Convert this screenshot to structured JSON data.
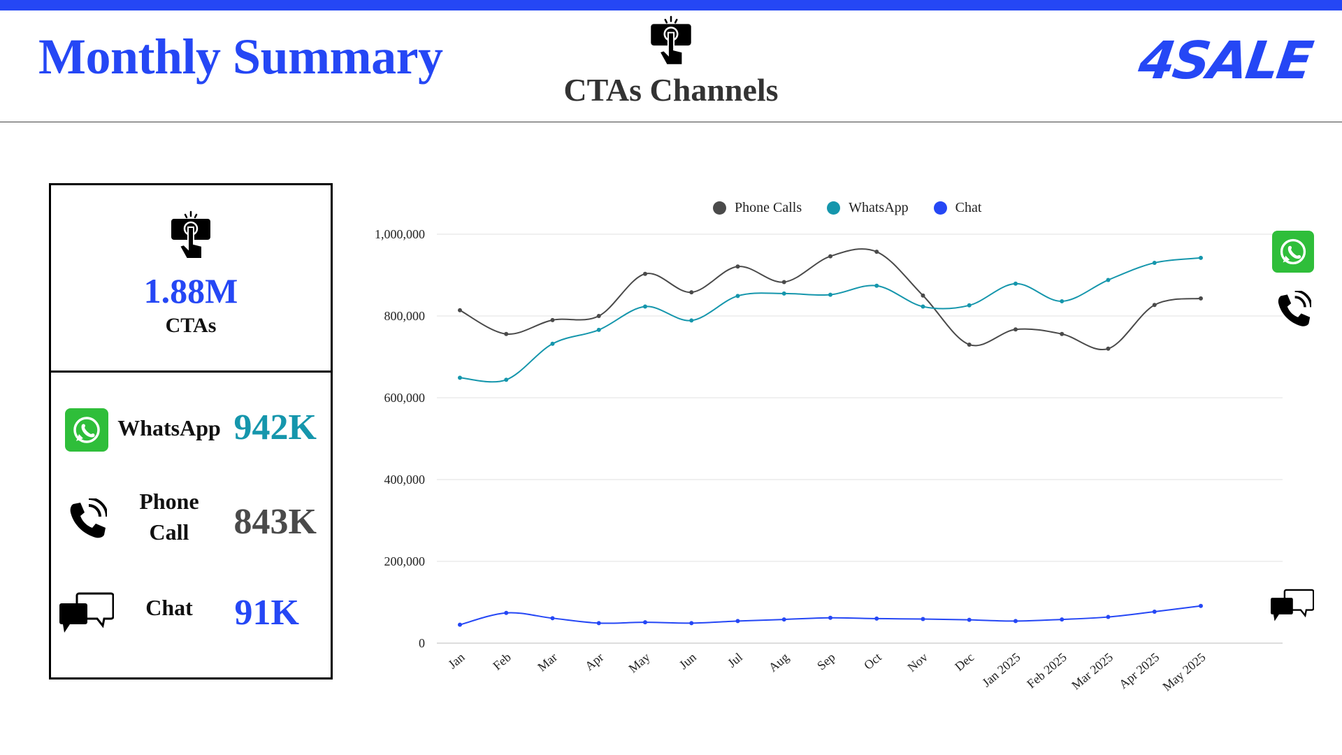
{
  "header": {
    "title": "Monthly Summary",
    "center_title": "CTAs Channels",
    "brand": "4SALE",
    "accent_color": "#2547f5"
  },
  "summary": {
    "total_value": "1.88M",
    "total_label": "CTAs",
    "channels": [
      {
        "label": "WhatsApp",
        "value": "942K",
        "icon": "whatsapp-icon",
        "color": "#1596ac"
      },
      {
        "label": "Phone Call",
        "value": "843K",
        "icon": "phone-icon",
        "color": "#4a4a4a"
      },
      {
        "label": "Chat",
        "value": "91K",
        "icon": "chat-icon",
        "color": "#2547f5"
      }
    ]
  },
  "chart_data": {
    "type": "line",
    "categories": [
      "Jan",
      "Feb",
      "Mar",
      "Apr",
      "May",
      "Jun",
      "Jul",
      "Aug",
      "Sep",
      "Oct",
      "Nov",
      "Dec",
      "Jan 2025",
      "Feb 2025",
      "Mar 2025",
      "Apr 2025",
      "May 2025"
    ],
    "series": [
      {
        "name": "Phone Calls",
        "color": "#4a4a4a",
        "values": [
          814000,
          756000,
          790000,
          800000,
          903000,
          858000,
          921000,
          883000,
          946000,
          957000,
          850000,
          730000,
          767000,
          756000,
          720000,
          827000,
          843000
        ]
      },
      {
        "name": "WhatsApp",
        "color": "#1596ac",
        "values": [
          649000,
          644000,
          732000,
          766000,
          823000,
          789000,
          849000,
          855000,
          852000,
          874000,
          823000,
          826000,
          879000,
          836000,
          888000,
          930000,
          942000
        ]
      },
      {
        "name": "Chat",
        "color": "#2547f5",
        "values": [
          45000,
          74000,
          61000,
          49000,
          51000,
          49000,
          54000,
          58000,
          62000,
          60000,
          59000,
          57000,
          54000,
          58000,
          64000,
          77000,
          91000
        ]
      }
    ],
    "y_ticks": [
      "0",
      "200,000",
      "400,000",
      "600,000",
      "800,000",
      "1,000,000"
    ],
    "ylim": [
      0,
      1000000
    ],
    "grid": true,
    "legend_position": "top"
  }
}
